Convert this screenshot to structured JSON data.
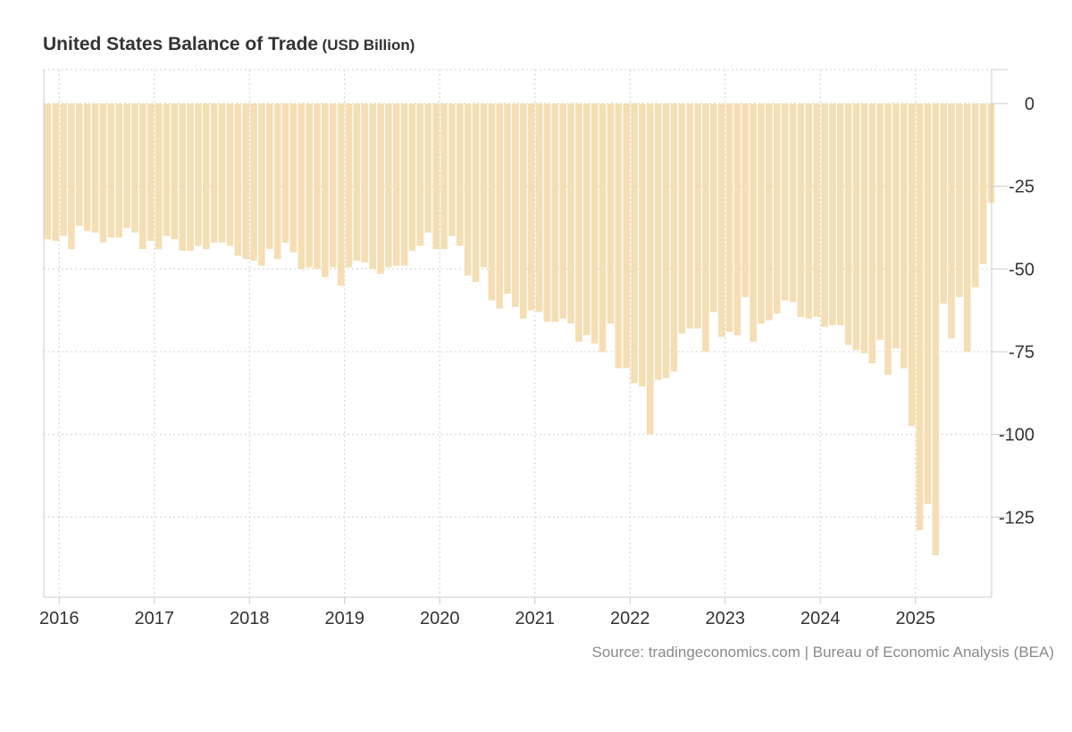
{
  "header": {
    "title": "United States Balance of Trade",
    "unit": "(USD Billion)"
  },
  "footer": {
    "source": "Source: tradingeconomics.com | Bureau of Economic Analysis (BEA)"
  },
  "colors": {
    "bar": "#f5deb3",
    "grid": "#d0d0d0",
    "axis": "#cccccc",
    "tick_text": "#333333"
  },
  "chart_data": {
    "type": "bar",
    "title": "United States Balance of Trade",
    "ylabel": "USD Billion",
    "xlabel": "",
    "ylim": [
      -148,
      10
    ],
    "yticks": [
      0,
      -25,
      -50,
      -75,
      -100,
      -125
    ],
    "ytick_labels": [
      "0",
      "-25",
      "-50",
      "-75",
      "-100",
      "-125"
    ],
    "xtick_labels": [
      "2016",
      "2017",
      "2018",
      "2019",
      "2020",
      "2021",
      "2022",
      "2023",
      "2024",
      "2025"
    ],
    "grid": true,
    "legend": "none",
    "start": {
      "year": 2015,
      "month": 11
    },
    "series": [
      {
        "name": "Balance of Trade",
        "values": [
          -41,
          -41.5,
          -40,
          -44,
          -37,
          -38.5,
          -39,
          -42,
          -40.5,
          -40.5,
          -37.5,
          -39,
          -44,
          -41.5,
          -44,
          -40,
          -41,
          -44.5,
          -44.5,
          -43,
          -44,
          -42,
          -42,
          -43,
          -46,
          -47,
          -47.5,
          -49,
          -44,
          -47,
          -42,
          -45,
          -50,
          -49.5,
          -50,
          -52.5,
          -49.5,
          -55,
          -49.5,
          -47.5,
          -48,
          -50,
          -51.5,
          -49.5,
          -49,
          -49,
          -44.5,
          -43,
          -39,
          -44,
          -44,
          -40,
          -43,
          -52,
          -54,
          -49.5,
          -59.5,
          -62,
          -57.5,
          -61.5,
          -65,
          -62.5,
          -63,
          -66,
          -66,
          -65,
          -66.5,
          -72,
          -70,
          -72.5,
          -75,
          -66.5,
          -80,
          -80,
          -84.5,
          -85.5,
          -100,
          -83.5,
          -83,
          -81,
          -69.5,
          -68,
          -68,
          -75,
          -63,
          -70.5,
          -69,
          -70,
          -58.5,
          -72,
          -66.5,
          -65.5,
          -63.5,
          -59.5,
          -60,
          -64.5,
          -65,
          -64.5,
          -67.5,
          -67,
          -67,
          -73,
          -74.5,
          -75.5,
          -78.5,
          -71.5,
          -82,
          -74,
          -80,
          -97.5,
          -129,
          -121,
          -136.5,
          -60.5,
          -71,
          -58.5,
          -75,
          -55.5,
          -48.5,
          -30
        ]
      }
    ]
  }
}
